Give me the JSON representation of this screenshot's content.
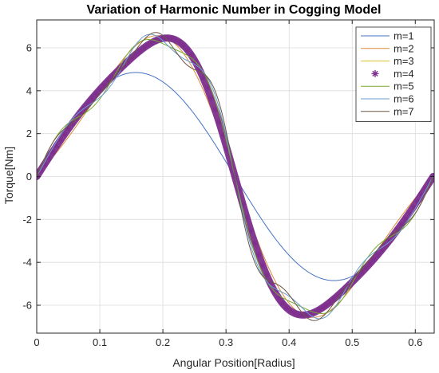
{
  "chart_data": {
    "type": "line",
    "title": "Variation of Harmonic Number in Cogging Model",
    "xlabel": "Angular Position[Radius]",
    "ylabel": "Torque[Nm]",
    "xlim": [
      0,
      0.63
    ],
    "ylim": [
      -7.3,
      7.3
    ],
    "xticks": [
      0,
      0.1,
      0.2,
      0.3,
      0.4,
      0.5,
      0.6
    ],
    "xtick_labels": [
      "0",
      "0.1",
      "0.2",
      "0.3",
      "0.4",
      "0.5",
      "0.6"
    ],
    "yticks": [
      -6,
      -4,
      -2,
      0,
      2,
      4,
      6
    ],
    "ytick_labels": [
      "-6",
      "-4",
      "-2",
      "0",
      "2",
      "4",
      "6"
    ],
    "grid": true,
    "legend_position": "top-right",
    "fundamental_period": 0.6283,
    "series": [
      {
        "name": "m=1",
        "color": "#4472c4",
        "marker": "none",
        "amplitudes": [
          4.85
        ]
      },
      {
        "name": "m=2",
        "color": "#d98c3c",
        "marker": "none",
        "amplitudes": [
          6.1,
          -1.3
        ]
      },
      {
        "name": "m=3",
        "color": "#d9c22e",
        "marker": "none",
        "amplitudes": [
          6.1,
          -1.3,
          0.45
        ]
      },
      {
        "name": "m=4",
        "color": "#7e2f8e",
        "marker": "asterisk",
        "amplitudes": [
          6.15,
          -1.35,
          0.45,
          -0.05
        ]
      },
      {
        "name": "m=5",
        "color": "#77ac30",
        "marker": "none",
        "amplitudes": [
          6.15,
          -1.35,
          0.45,
          -0.05,
          0.45
        ]
      },
      {
        "name": "m=6",
        "color": "#6a9ed4",
        "marker": "none",
        "amplitudes": [
          6.15,
          -1.35,
          0.45,
          -0.05,
          0.45,
          -0.25
        ]
      },
      {
        "name": "m=7",
        "color": "#6d5645",
        "marker": "none",
        "amplitudes": [
          6.15,
          -1.35,
          0.45,
          -0.05,
          0.45,
          -0.25,
          0.25
        ]
      }
    ]
  }
}
